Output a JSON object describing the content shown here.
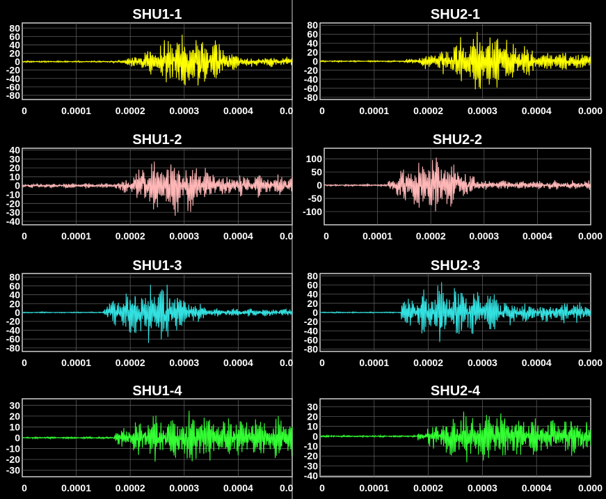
{
  "chart_data": [
    {
      "type": "line",
      "title": "SHU1-1",
      "color": "#ffff00",
      "ylim": [
        -90,
        92
      ],
      "yticks": [
        80,
        60,
        40,
        20,
        0,
        -20,
        -40,
        -60,
        -80
      ],
      "xlim": [
        0,
        0.0005
      ],
      "xticks": [
        "0",
        "0.0001",
        "0.0002",
        "0.0003",
        "0.0004",
        "0.0"
      ],
      "envelope": {
        "onset": 0.00016,
        "peak": 0.00031,
        "width": 7.5e-05,
        "amp": 82,
        "noise": 2,
        "tail": 14,
        "cycles": 20
      },
      "series": [
        {
          "values": []
        }
      ]
    },
    {
      "type": "line",
      "title": "SHU2-1",
      "color": "#ffff00",
      "ylim": [
        -85,
        85
      ],
      "yticks": [
        80,
        60,
        40,
        20,
        0,
        -20,
        -40,
        -60,
        -80
      ],
      "xlim": [
        0,
        0.0005
      ],
      "xticks": [
        "0",
        "0.0001",
        "0.0002",
        "0.0003",
        "0.0004",
        "0.000"
      ],
      "envelope": {
        "onset": 0.00014,
        "peak": 0.00031,
        "width": 9e-05,
        "amp": 75,
        "noise": 2,
        "tail": 25,
        "cycles": 20
      },
      "series": [
        {
          "values": []
        }
      ]
    },
    {
      "type": "line",
      "title": "SHU1-2",
      "color": "#ffb6b6",
      "ylim": [
        -44,
        42
      ],
      "yticks": [
        40,
        30,
        20,
        10,
        0,
        -10,
        -20,
        -30,
        -40
      ],
      "xlim": [
        0,
        0.0005
      ],
      "xticks": [
        "0",
        "0.0001",
        "0.0002",
        "0.0003",
        "0.0004",
        "0.0"
      ],
      "envelope": {
        "onset": 0.00017,
        "peak": 0.00028,
        "width": 8e-05,
        "amp": 38,
        "noise": 3,
        "tail": 15,
        "cycles": 20
      },
      "series": [
        {
          "values": []
        }
      ]
    },
    {
      "type": "line",
      "title": "SHU2-2",
      "color": "#ffb6b6",
      "ylim": [
        -150,
        140
      ],
      "yticks": [
        100,
        50,
        0,
        -50,
        -100
      ],
      "xlim": [
        0,
        0.0005
      ],
      "xticks": [
        "0",
        "0.0001",
        "0.0002",
        "0.0003",
        "0.0004",
        "0.000"
      ],
      "envelope": {
        "onset": 0.00012,
        "peak": 0.0002,
        "width": 8e-05,
        "amp": 120,
        "noise": 4,
        "tail": 20,
        "cycles": 20
      },
      "series": [
        {
          "values": []
        }
      ]
    },
    {
      "type": "line",
      "title": "SHU1-3",
      "color": "#33e0e0",
      "ylim": [
        -88,
        88
      ],
      "yticks": [
        80,
        60,
        40,
        20,
        0,
        -20,
        -40,
        -60,
        -80
      ],
      "xlim": [
        0,
        0.0005
      ],
      "xticks": [
        "0",
        "0.0001",
        "0.0002",
        "0.0003",
        "0.0004",
        "0.0"
      ],
      "envelope": {
        "onset": 0.00015,
        "peak": 0.00024,
        "width": 8e-05,
        "amp": 78,
        "noise": 1.5,
        "tail": 10,
        "cycles": 20
      },
      "series": [
        {
          "values": []
        }
      ]
    },
    {
      "type": "line",
      "title": "SHU2-3",
      "color": "#33e0e0",
      "ylim": [
        -85,
        85
      ],
      "yticks": [
        80,
        60,
        40,
        20,
        0,
        -20,
        -40,
        -60,
        -80
      ],
      "xlim": [
        0,
        0.0005
      ],
      "xticks": [
        "0",
        "0.0001",
        "0.0002",
        "0.0003",
        "0.0004",
        "0.000"
      ],
      "envelope": {
        "onset": 0.00015,
        "peak": 0.00024,
        "width": 0.00012,
        "amp": 70,
        "noise": 1.5,
        "tail": 25,
        "cycles": 20
      },
      "series": [
        {
          "values": []
        }
      ]
    },
    {
      "type": "line",
      "title": "SHU1-4",
      "color": "#33ff33",
      "ylim": [
        -36,
        36
      ],
      "yticks": [
        30,
        20,
        10,
        0,
        -10,
        -20,
        -30
      ],
      "xlim": [
        0,
        0.0005
      ],
      "xticks": [
        "0",
        "0.0001",
        "0.0002",
        "0.0003",
        "0.0004",
        "0.0"
      ],
      "envelope": {
        "onset": 0.00017,
        "peak": 0.0003,
        "width": 0.00012,
        "amp": 30,
        "noise": 1,
        "tail": 22,
        "cycles": 20
      },
      "series": [
        {
          "values": []
        }
      ]
    },
    {
      "type": "line",
      "title": "SHU2-4",
      "color": "#33ff33",
      "ylim": [
        -41,
        38
      ],
      "yticks": [
        30,
        20,
        10,
        0,
        -10,
        -20,
        -30,
        -40
      ],
      "xlim": [
        0,
        0.0005
      ],
      "xticks": [
        "0",
        "0.0001",
        "0.0002",
        "0.0003",
        "0.0004",
        "0.000"
      ],
      "envelope": {
        "onset": 0.00018,
        "peak": 0.0003,
        "width": 0.0001,
        "amp": 32,
        "noise": 1,
        "tail": 22,
        "cycles": 20
      },
      "series": [
        {
          "values": []
        }
      ]
    }
  ]
}
